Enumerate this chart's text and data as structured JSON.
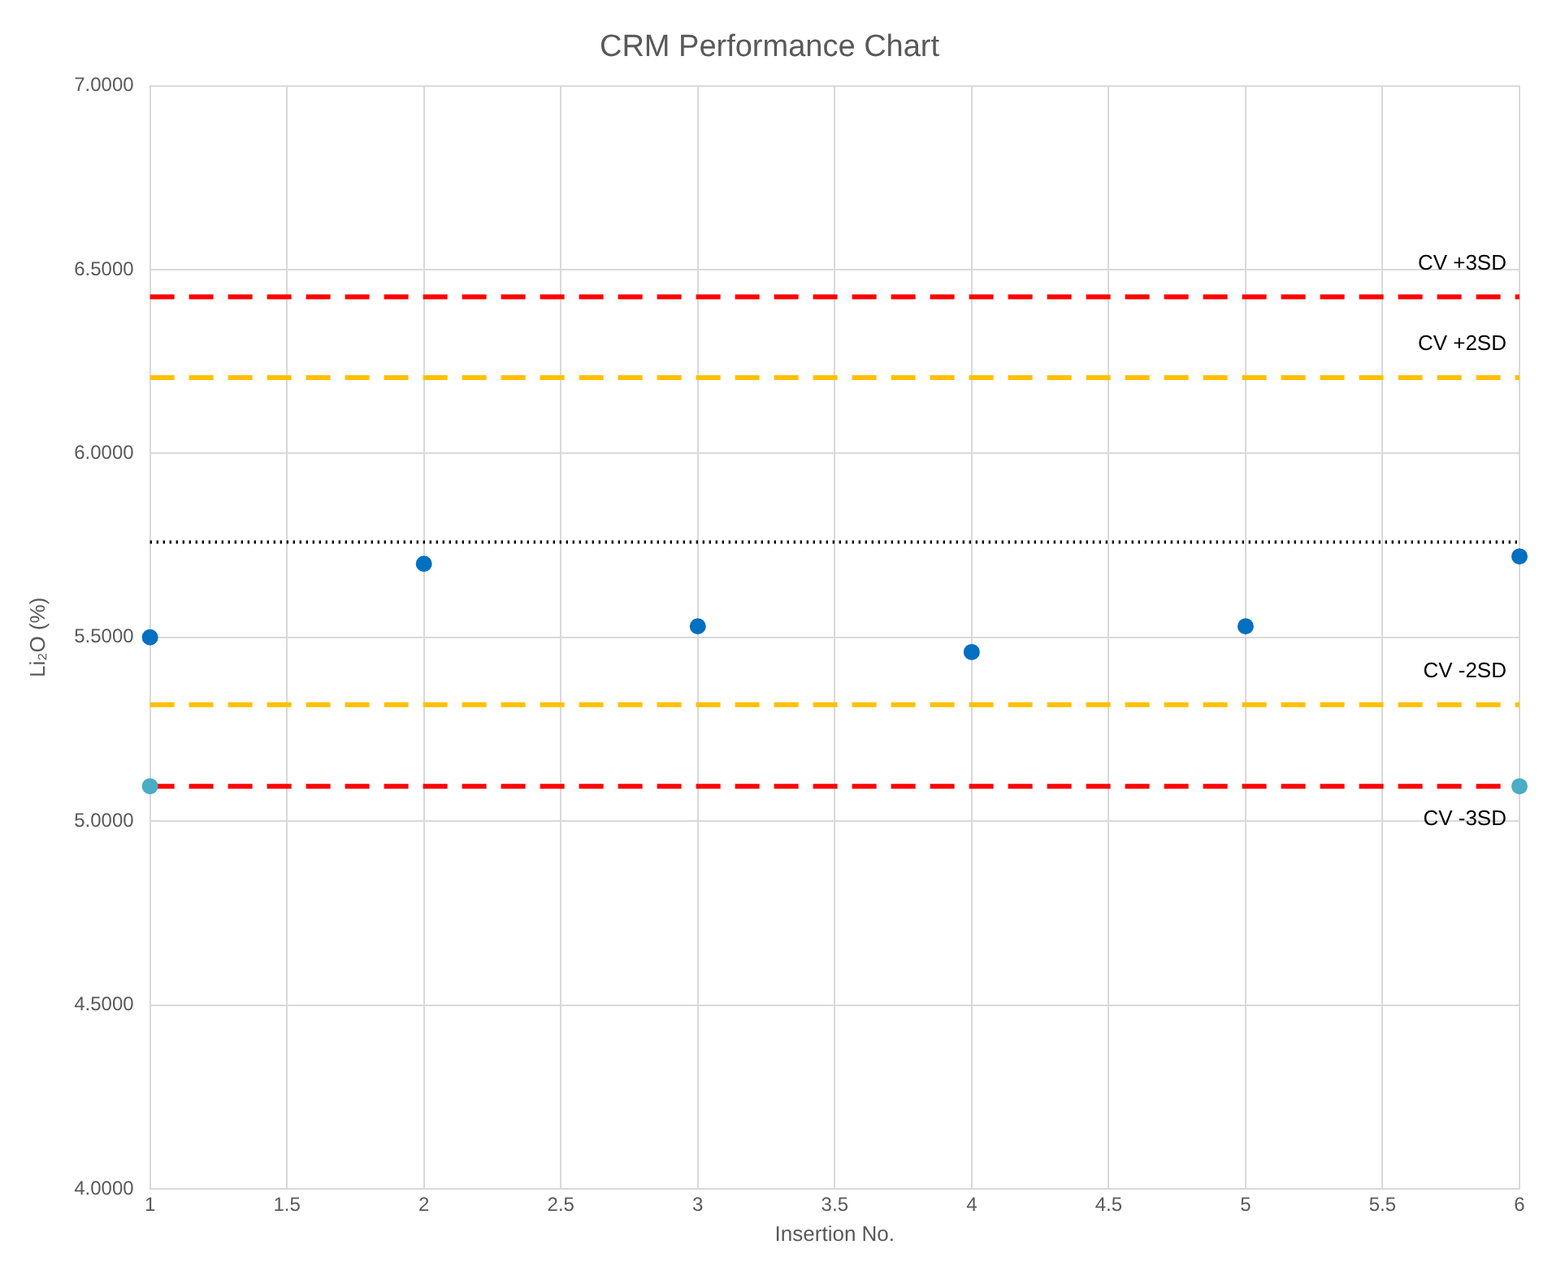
{
  "chart_data": {
    "type": "scatter",
    "title": "CRM Performance Chart",
    "xlabel": "Insertion No.",
    "ylabel": "Li₂O (%)",
    "series": [
      {
        "color": "#0070c0",
        "x": [
          1,
          2,
          3,
          4,
          5,
          6
        ],
        "values": [
          5.5,
          5.7,
          5.53,
          5.46,
          5.53,
          5.72
        ]
      },
      {
        "color": "#4bacc6",
        "x": [
          1,
          6
        ],
        "values": [
          5.095,
          5.095
        ]
      }
    ],
    "xlim": [
      1,
      6
    ],
    "xticks": [
      1,
      1.5,
      2,
      2.5,
      3,
      3.5,
      4,
      4.5,
      5,
      5.5,
      6
    ],
    "ylim": [
      4,
      7
    ],
    "yticks": [
      {
        "value": 4,
        "label": "4.0000"
      },
      {
        "value": 4.5,
        "label": "4.5000"
      },
      {
        "value": 5,
        "label": "5.0000"
      },
      {
        "value": 5.5,
        "label": "5.5000"
      },
      {
        "value": 6,
        "label": "6.0000"
      },
      {
        "value": 6.5,
        "label": "6.5000"
      },
      {
        "value": 7,
        "label": "7.0000"
      }
    ],
    "ref_lines": [
      {
        "axis": "y",
        "value": 6.426,
        "label": "CV +3SD",
        "color": "#ff0000",
        "line_style": "dashed"
      },
      {
        "axis": "y",
        "value": 6.206,
        "label": "CV +2SD",
        "color": "#ffc000",
        "line_style": "dashed"
      },
      {
        "axis": "y",
        "value": 5.759,
        "color": "#000000",
        "line_style": "dotted"
      },
      {
        "axis": "y",
        "value": 5.317,
        "label": "CV -2SD",
        "color": "#ffc000",
        "line_style": "dashed"
      },
      {
        "axis": "y",
        "value": 5.095,
        "label": "CV -3SD",
        "color": "#ff0000",
        "line_style": "dashed"
      }
    ],
    "grid": true,
    "marker": "circle",
    "legend": false
  }
}
